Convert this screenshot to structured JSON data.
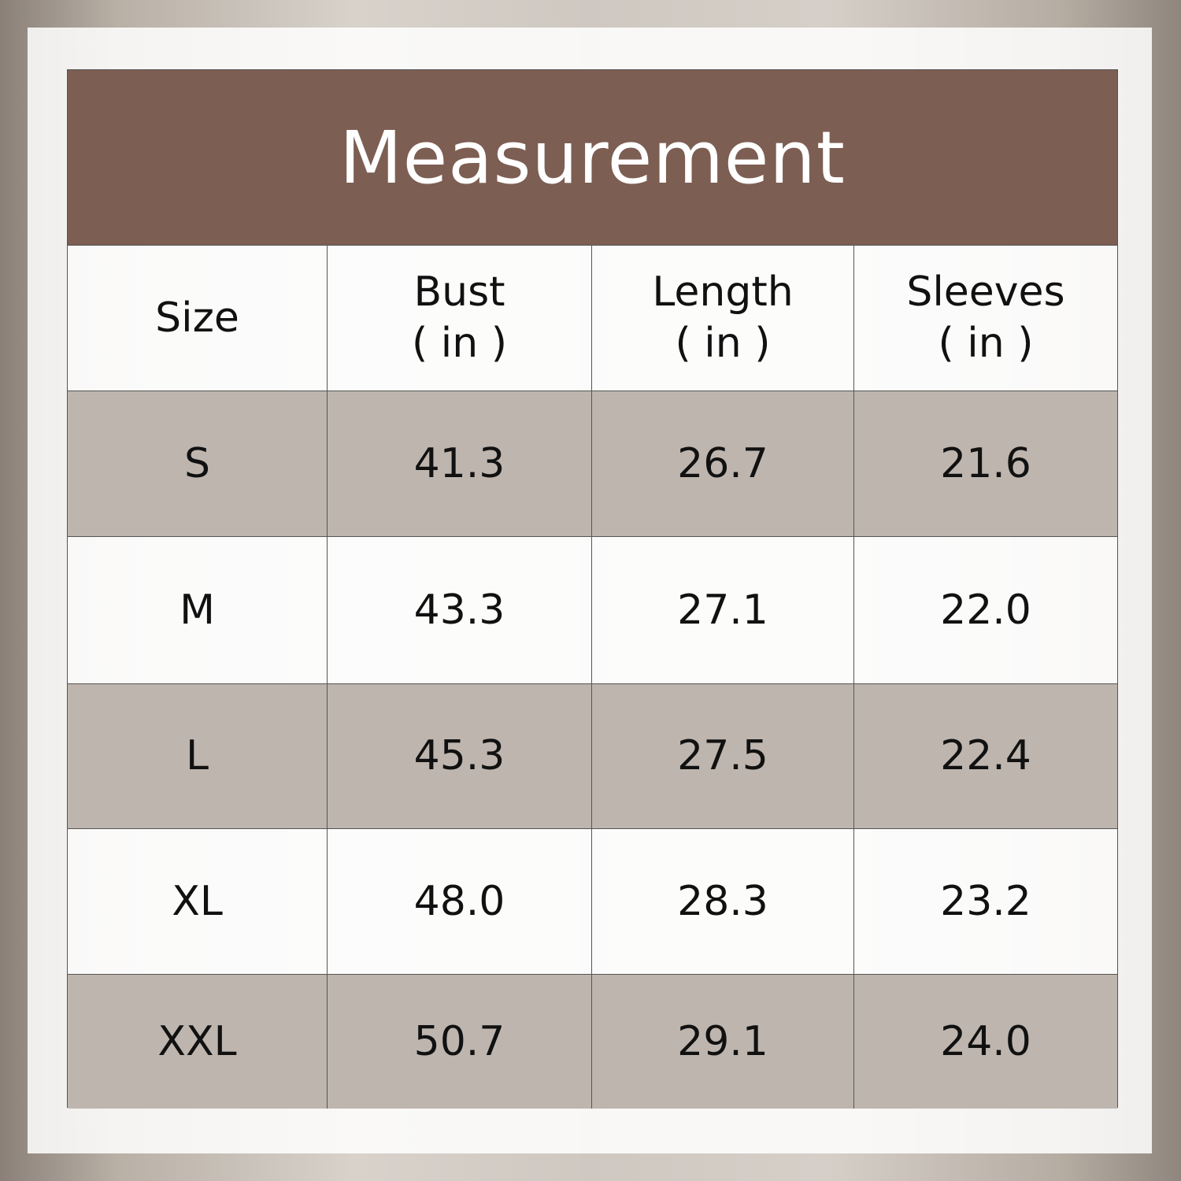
{
  "title": "Measurement",
  "headers": [
    {
      "label": "Size",
      "unit": ""
    },
    {
      "label": "Bust",
      "unit": "( in )"
    },
    {
      "label": "Length",
      "unit": "( in )"
    },
    {
      "label": "Sleeves",
      "unit": "( in )"
    }
  ],
  "rows": [
    [
      "S",
      "41.3",
      "26.7",
      "21.6"
    ],
    [
      "M",
      "43.3",
      "27.1",
      "22.0"
    ],
    [
      "L",
      "45.3",
      "27.5",
      "22.4"
    ],
    [
      "XL",
      "48.0",
      "28.3",
      "23.2"
    ],
    [
      "XXL",
      "50.7",
      "29.1",
      "24.0"
    ]
  ],
  "colors": {
    "header": "#7d5e53",
    "alt_row": "#beb5ae"
  }
}
